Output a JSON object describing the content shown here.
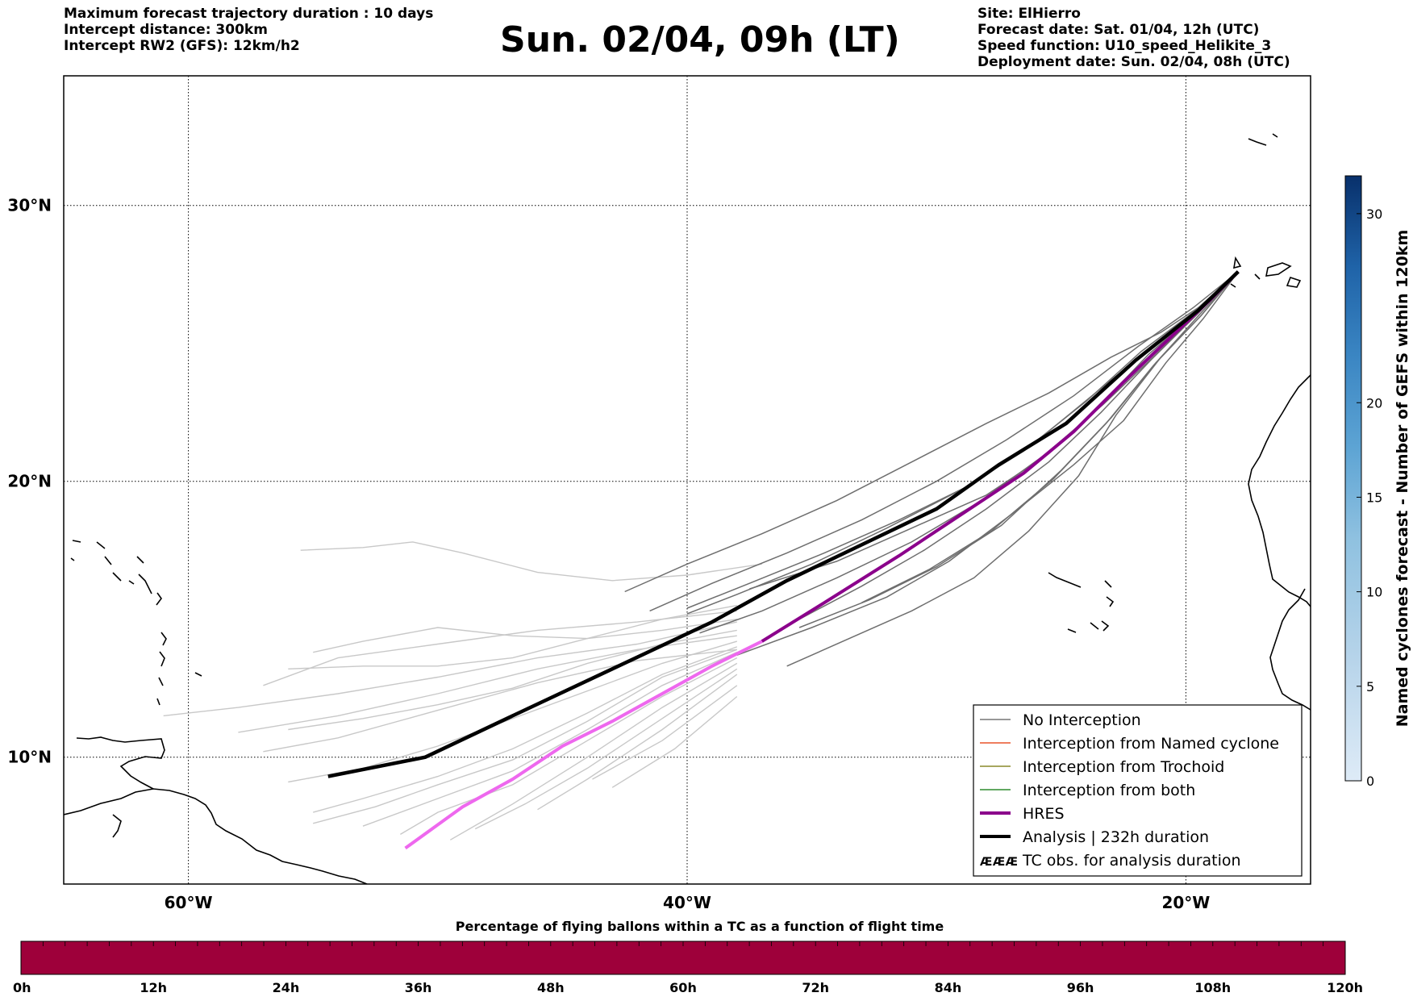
{
  "header": {
    "left_lines": [
      "Maximum forecast trajectory duration : 10 days",
      "Intercept distance: 300km",
      "Intercept RW2 (GFS):  12km/h2"
    ],
    "title": "Sun. 02/04, 09h (LT)",
    "right_lines": [
      "Site: ElHierro",
      "Forecast date: Sat. 01/04, 12h (UTC)",
      "Speed function: U10_speed_Helikite_3",
      "Deployment date: Sun. 02/04, 08h (UTC)"
    ]
  },
  "map": {
    "lat_labels": [
      "30°N",
      "20°N",
      "10°N"
    ],
    "lon_labels": [
      "60°W",
      "40°W",
      "20°W"
    ],
    "lat_values": [
      30,
      20,
      10
    ],
    "lon_values": [
      -60,
      -40,
      -20
    ],
    "extent": {
      "lon_min": -65,
      "lon_max": -15,
      "lat_min": 5.4,
      "lat_max": 34.7
    },
    "gridlines": "dotted"
  },
  "legend": {
    "items": [
      {
        "label": "No Interception",
        "color": "#777777",
        "style": "thin"
      },
      {
        "label": "Interception from Named cyclone",
        "color": "#e8542a",
        "style": "thin"
      },
      {
        "label": "Interception from Trochoid",
        "color": "#8a8a2a",
        "style": "thin"
      },
      {
        "label": "Interception from both",
        "color": "#2e8b2e",
        "style": "thin"
      },
      {
        "label": "HRES",
        "color": "#8b008b",
        "style": "thick"
      },
      {
        "label": "Analysis | 232h duration",
        "color": "#000000",
        "style": "thick"
      },
      {
        "label": "TC obs. for analysis duration",
        "color": "#000000",
        "style": "symbol",
        "symbol": "ᴁᴁᴁ"
      }
    ]
  },
  "colorbar": {
    "label": "Named cyclones forecast - Number of GEFS within 120km",
    "ticks": [
      "0",
      "5",
      "10",
      "15",
      "20",
      "30"
    ],
    "tick_values": [
      0,
      5,
      10,
      15,
      20,
      30
    ],
    "max": 32,
    "colors": [
      "#d8e7f5",
      "#b7d4ea",
      "#8fc1e0",
      "#5da4d4",
      "#3b86c3",
      "#1f63a8",
      "#0b4a8e",
      "#08306b"
    ]
  },
  "flight_bar": {
    "title": "Percentage of flying ballons within a TC as a function of flight time",
    "color": "#9e003a",
    "labels": [
      "0h",
      "12h",
      "24h",
      "36h",
      "48h",
      "60h",
      "72h",
      "84h",
      "96h",
      "108h",
      "120h"
    ]
  },
  "trajectories": {
    "analysis": [
      [
        -17.9,
        27.6
      ],
      [
        -19.5,
        26.2
      ],
      [
        -22,
        24.4
      ],
      [
        -24.8,
        22.1
      ],
      [
        -27.5,
        20.6
      ],
      [
        -30,
        19
      ],
      [
        -33,
        17.7
      ],
      [
        -36,
        16.4
      ],
      [
        -39,
        14.9
      ],
      [
        -43,
        13.2
      ],
      [
        -47,
        11.5
      ],
      [
        -50.5,
        10
      ],
      [
        -54.4,
        9.3
      ]
    ],
    "hres_dark": [
      [
        -17.9,
        27.6
      ],
      [
        -19,
        26.6
      ],
      [
        -20.4,
        25.4
      ],
      [
        -22.5,
        23.6
      ],
      [
        -24.5,
        21.8
      ],
      [
        -26.5,
        20.3
      ],
      [
        -29,
        18.8
      ],
      [
        -31.5,
        17.3
      ],
      [
        -34.5,
        15.6
      ],
      [
        -37,
        14.2
      ]
    ],
    "hres_light": [
      [
        -37,
        14.2
      ],
      [
        -39,
        13.3
      ],
      [
        -41,
        12.3
      ],
      [
        -43,
        11.3
      ],
      [
        -45,
        10.4
      ],
      [
        -47,
        9.2
      ],
      [
        -49,
        8.2
      ],
      [
        -51.3,
        6.7
      ]
    ],
    "dark_gray": [
      [
        [
          -17.9,
          27.6
        ],
        [
          -19.5,
          26.3
        ],
        [
          -21,
          25.4
        ],
        [
          -23,
          24.5
        ],
        [
          -25.5,
          23.2
        ],
        [
          -28,
          22.1
        ],
        [
          -31,
          20.7
        ],
        [
          -34,
          19.3
        ],
        [
          -37,
          18.1
        ],
        [
          -40,
          17
        ],
        [
          -42.5,
          16
        ]
      ],
      [
        [
          -17.9,
          27.6
        ],
        [
          -19.4,
          26
        ],
        [
          -21,
          24.5
        ],
        [
          -22.8,
          22.4
        ],
        [
          -24.3,
          20.2
        ],
        [
          -26.3,
          18.2
        ],
        [
          -28.5,
          16.5
        ],
        [
          -31,
          15.3
        ],
        [
          -33.5,
          14.3
        ],
        [
          -36,
          13.3
        ]
      ],
      [
        [
          -17.9,
          27.6
        ],
        [
          -19.6,
          26.1
        ],
        [
          -21.5,
          24.6
        ],
        [
          -23.5,
          22.7
        ],
        [
          -25.5,
          21
        ],
        [
          -28,
          19.5
        ],
        [
          -31,
          18.3
        ],
        [
          -34,
          17.1
        ],
        [
          -37.5,
          16.1
        ]
      ],
      [
        [
          -17.9,
          27.6
        ],
        [
          -19.6,
          26.2
        ],
        [
          -21.8,
          24.7
        ],
        [
          -24,
          22.9
        ],
        [
          -26.5,
          21.1
        ],
        [
          -29,
          19.7
        ],
        [
          -32,
          18.3
        ],
        [
          -35,
          17
        ],
        [
          -38,
          15.9
        ],
        [
          -40,
          15.2
        ]
      ],
      [
        [
          -17.9,
          27.6
        ],
        [
          -19.5,
          26.1
        ],
        [
          -21.4,
          24.4
        ],
        [
          -23.4,
          22.5
        ],
        [
          -25.5,
          20.7
        ],
        [
          -28,
          19
        ],
        [
          -30.5,
          17.5
        ],
        [
          -33,
          16.2
        ],
        [
          -35.5,
          15
        ]
      ],
      [
        [
          -17.9,
          27.6
        ],
        [
          -19.3,
          25.9
        ],
        [
          -20.8,
          24.3
        ],
        [
          -22.5,
          22.2
        ],
        [
          -24.5,
          20.6
        ],
        [
          -27,
          18.8
        ],
        [
          -29.5,
          17.1
        ],
        [
          -32,
          15.8
        ],
        [
          -35,
          14.7
        ],
        [
          -38,
          13.7
        ]
      ],
      [
        [
          -17.9,
          27.6
        ],
        [
          -19.5,
          26.1
        ],
        [
          -21.2,
          24.6
        ],
        [
          -23.3,
          22.8
        ],
        [
          -25.6,
          21
        ],
        [
          -28.2,
          19.3
        ],
        [
          -31,
          17.8
        ],
        [
          -34,
          16.5
        ],
        [
          -37,
          15.3
        ],
        [
          -39.5,
          14.5
        ]
      ],
      [
        [
          -17.9,
          27.6
        ],
        [
          -19.7,
          26.3
        ],
        [
          -21.9,
          24.9
        ],
        [
          -24.5,
          23.1
        ],
        [
          -27.2,
          21.5
        ],
        [
          -30,
          20
        ],
        [
          -33,
          18.6
        ],
        [
          -36,
          17.4
        ],
        [
          -39,
          16.3
        ],
        [
          -41.5,
          15.3
        ]
      ],
      [
        [
          -17.9,
          27.6
        ],
        [
          -19.4,
          26
        ],
        [
          -21.2,
          24.3
        ],
        [
          -23,
          22.3
        ],
        [
          -25,
          20.4
        ],
        [
          -27.4,
          18.4
        ],
        [
          -30,
          16.9
        ],
        [
          -32.7,
          15.7
        ],
        [
          -35.5,
          14.7
        ]
      ],
      [
        [
          -17.9,
          27.6
        ],
        [
          -19.6,
          26.2
        ],
        [
          -21.6,
          24.7
        ],
        [
          -23.9,
          23
        ],
        [
          -26.2,
          21.3
        ],
        [
          -28.8,
          19.8
        ],
        [
          -31.5,
          18.6
        ],
        [
          -34.5,
          17.4
        ],
        [
          -37.5,
          16.3
        ],
        [
          -40,
          15.4
        ]
      ],
      [
        [
          -17.9,
          27.6
        ],
        [
          -19.5,
          26
        ],
        [
          -21.3,
          24.2
        ],
        [
          -23.2,
          22.1
        ],
        [
          -25.3,
          20.1
        ],
        [
          -27.8,
          18.2
        ],
        [
          -30.3,
          16.8
        ],
        [
          -33,
          15.6
        ]
      ]
    ],
    "light_gray": [
      [
        [
          -37,
          17
        ],
        [
          -40,
          16.6
        ],
        [
          -43,
          16.4
        ],
        [
          -46,
          16.7
        ],
        [
          -49,
          17.4
        ],
        [
          -51,
          17.8
        ],
        [
          -53,
          17.6
        ],
        [
          -55.5,
          17.5
        ]
      ],
      [
        [
          -38,
          15.5
        ],
        [
          -41,
          15
        ],
        [
          -44,
          14.3
        ],
        [
          -47,
          13.6
        ],
        [
          -50,
          13.3
        ],
        [
          -53,
          13.3
        ],
        [
          -56,
          13.2
        ]
      ],
      [
        [
          -38,
          15
        ],
        [
          -41,
          14.6
        ],
        [
          -44,
          14.3
        ],
        [
          -47,
          14.4
        ],
        [
          -50,
          14.7
        ],
        [
          -53,
          14.2
        ],
        [
          -55,
          13.8
        ]
      ],
      [
        [
          -38,
          14.6
        ],
        [
          -41,
          14.1
        ],
        [
          -44,
          13.4
        ],
        [
          -47,
          12.5
        ],
        [
          -50,
          11.9
        ],
        [
          -53,
          11.4
        ],
        [
          -56,
          11
        ]
      ],
      [
        [
          -38,
          14.2
        ],
        [
          -41,
          13.4
        ],
        [
          -44,
          12.4
        ],
        [
          -47,
          11.4
        ],
        [
          -50,
          10.4
        ],
        [
          -53,
          9.6
        ],
        [
          -56,
          9.1
        ]
      ],
      [
        [
          -38,
          14
        ],
        [
          -41,
          13
        ],
        [
          -44,
          11.6
        ],
        [
          -47,
          10.3
        ],
        [
          -50,
          9.3
        ],
        [
          -53,
          8.5
        ],
        [
          -55,
          8
        ]
      ],
      [
        [
          -38,
          13.8
        ],
        [
          -41,
          12.6
        ],
        [
          -44,
          11
        ],
        [
          -47,
          9.5
        ],
        [
          -50,
          8.5
        ],
        [
          -53,
          7.5
        ]
      ],
      [
        [
          -38,
          13.6
        ],
        [
          -41,
          12.2
        ],
        [
          -44,
          10.6
        ],
        [
          -47,
          9
        ],
        [
          -50,
          8
        ],
        [
          -51.5,
          7.2
        ]
      ],
      [
        [
          -38,
          13.4
        ],
        [
          -41,
          11.8
        ],
        [
          -44,
          10
        ],
        [
          -47,
          8.3
        ],
        [
          -49.5,
          7
        ]
      ],
      [
        [
          -38,
          13.2
        ],
        [
          -41,
          11.4
        ],
        [
          -44,
          9.6
        ],
        [
          -46.5,
          8.3
        ],
        [
          -48.5,
          7.4
        ]
      ],
      [
        [
          -38,
          13
        ],
        [
          -41,
          11
        ],
        [
          -44,
          9.2
        ],
        [
          -46,
          8.1
        ]
      ],
      [
        [
          -38,
          14.9
        ],
        [
          -42,
          14.1
        ],
        [
          -46,
          13.6
        ],
        [
          -50,
          12.9
        ],
        [
          -54,
          12.3
        ],
        [
          -58,
          11.8
        ],
        [
          -61,
          11.5
        ]
      ],
      [
        [
          -38,
          14.4
        ],
        [
          -42,
          13.9
        ],
        [
          -46,
          13.2
        ],
        [
          -50,
          12.3
        ],
        [
          -54,
          11.5
        ],
        [
          -58,
          10.9
        ]
      ],
      [
        [
          -38,
          13.9
        ],
        [
          -42,
          13.5
        ],
        [
          -46,
          12.7
        ],
        [
          -50,
          11.7
        ],
        [
          -54,
          10.7
        ],
        [
          -57,
          10.2
        ]
      ],
      [
        [
          -38,
          12.6
        ],
        [
          -41,
          10.6
        ],
        [
          -43.8,
          9.2
        ]
      ],
      [
        [
          -38,
          12.2
        ],
        [
          -40.5,
          10.3
        ],
        [
          -43,
          8.9
        ]
      ],
      [
        [
          -38,
          15.3
        ],
        [
          -42,
          14.9
        ],
        [
          -46,
          14.6
        ],
        [
          -50,
          14.1
        ],
        [
          -54,
          13.6
        ],
        [
          -57,
          12.6
        ]
      ],
      [
        [
          -38,
          13.9
        ],
        [
          -41,
          12.9
        ],
        [
          -44,
          11.3
        ],
        [
          -47,
          9.9
        ],
        [
          -50,
          9
        ],
        [
          -52.5,
          8.2
        ],
        [
          -55,
          7.6
        ]
      ]
    ]
  }
}
